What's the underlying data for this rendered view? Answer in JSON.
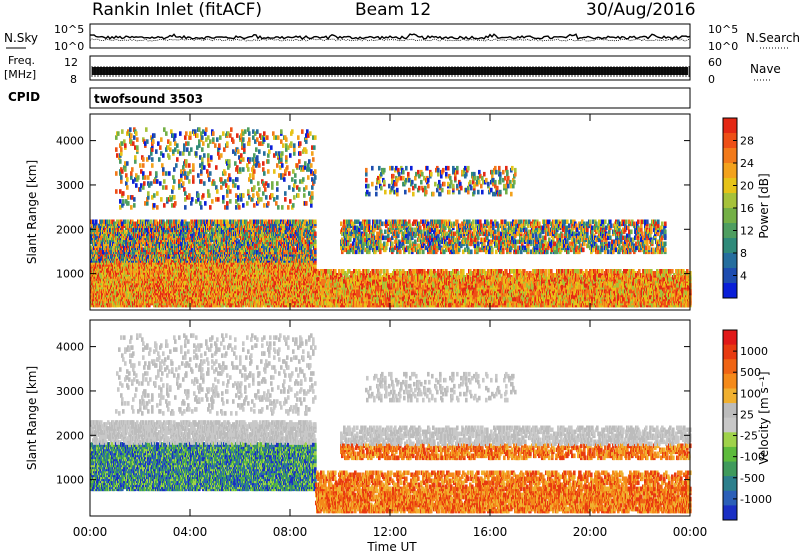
{
  "header": {
    "station": "Rankin Inlet (fitACF)",
    "beam": "Beam 12",
    "date": "30/Aug/2016"
  },
  "noise_panel": {
    "left_label": "N.Sky",
    "right_label": "N.Search",
    "left_ticks": [
      "10^5",
      "10^0"
    ],
    "right_ticks": [
      "10^5",
      "10^0"
    ]
  },
  "freq_panel": {
    "left_label_1": "Freq.",
    "left_label_2": "[MHz]",
    "left_ticks": [
      "12",
      "8"
    ],
    "right_label": "Nave",
    "right_ticks": [
      "60",
      "0"
    ]
  },
  "cpid_panel": {
    "label": "CPID",
    "program": "twofsound 3503"
  },
  "chart_data": [
    {
      "type": "heatmap",
      "name": "power",
      "ylabel": "Slant Range [km]",
      "y_ticks": [
        1000,
        2000,
        3000,
        4000
      ],
      "ylim": [
        180,
        4600
      ],
      "x_ticks": [
        "00:00",
        "04:00",
        "08:00",
        "12:00",
        "16:00",
        "20:00",
        "00:00"
      ],
      "xlim_hours": [
        0,
        24
      ],
      "colorbar": {
        "label": "Power [dB]",
        "ticks": [
          "28",
          "24",
          "20",
          "16",
          "12",
          "8",
          "4"
        ],
        "range": [
          0,
          30
        ],
        "colors": [
          "#0a1fd8",
          "#1e4db0",
          "#256e9e",
          "#2f8a7a",
          "#4e9e60",
          "#74b046",
          "#a6c23a",
          "#e6c318",
          "#f3a21c",
          "#f27a1a",
          "#ee4f16",
          "#e42814"
        ]
      }
    },
    {
      "type": "heatmap",
      "name": "velocity",
      "ylabel": "Slant Range [km]",
      "y_ticks": [
        1000,
        2000,
        3000,
        4000
      ],
      "ylim": [
        180,
        4600
      ],
      "x_ticks": [
        "00:00",
        "04:00",
        "08:00",
        "12:00",
        "16:00",
        "20:00",
        "00:00"
      ],
      "xlabel": "Time UT",
      "xlim_hours": [
        0,
        24
      ],
      "colorbar": {
        "label": "Velocity [m s⁻¹]",
        "ticks": [
          "1000",
          "500",
          "100",
          "25",
          "-25",
          "-100",
          "-500",
          "-1000"
        ],
        "colors": [
          "#1a2fc4",
          "#2b5fb8",
          "#2c7f8c",
          "#3f9a5c",
          "#5dbb3c",
          "#9fd24a",
          "#c8c8c8",
          "#bcbcbc",
          "#f0b030",
          "#f48a1a",
          "#ef6414",
          "#e83a10",
          "#e01818"
        ]
      }
    }
  ]
}
